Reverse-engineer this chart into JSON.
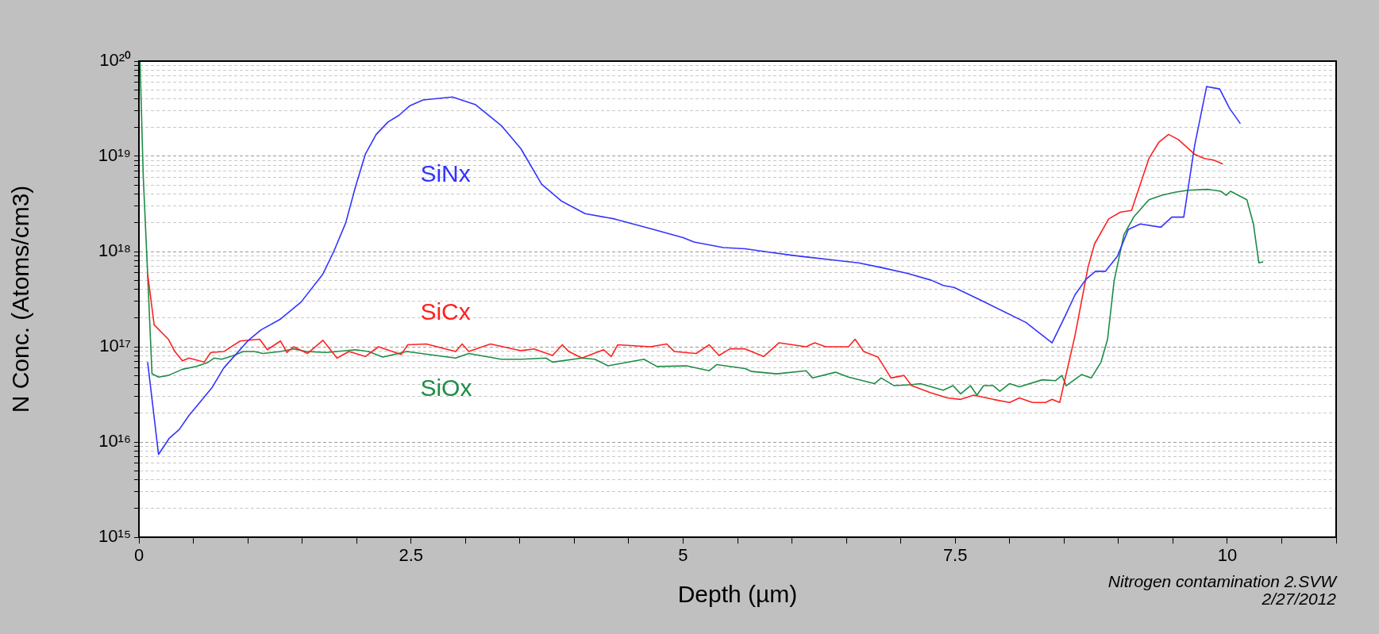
{
  "chart_data": {
    "type": "line",
    "xlabel": "Depth (µm)",
    "ylabel": "N Conc. (Atoms/cm3)",
    "log": "y",
    "grid": "y",
    "legend": false,
    "marker": "none",
    "line_style": "solid",
    "xlim": [
      0,
      11
    ],
    "xticks": [
      0,
      {
        "value": 0.5,
        "label": null
      },
      {
        "value": 1,
        "label": null
      },
      {
        "value": 1.5,
        "label": null
      },
      {
        "value": 2,
        "label": null
      },
      2.5,
      {
        "value": 3,
        "label": null
      },
      {
        "value": 3.5,
        "label": null
      },
      {
        "value": 4,
        "label": null
      },
      {
        "value": 4.5,
        "label": null
      },
      5,
      {
        "value": 5.5,
        "label": null
      },
      {
        "value": 6,
        "label": null
      },
      {
        "value": 6.5,
        "label": null
      },
      {
        "value": 7,
        "label": null
      },
      7.5,
      {
        "value": 8,
        "label": null
      },
      {
        "value": 8.5,
        "label": null
      },
      {
        "value": 9,
        "label": null
      },
      {
        "value": 9.5,
        "label": null
      },
      10,
      {
        "value": 10.5,
        "label": null
      },
      {
        "value": 11,
        "label": null
      }
    ],
    "ylim": [
      1000000000000000.0,
      1e+20
    ],
    "yticks": [
      {
        "value": 1000000000000000.0,
        "label": "10¹⁵"
      },
      {
        "value": 2000000000000000.0,
        "label": null
      },
      {
        "value": 3000000000000000.0,
        "label": null
      },
      {
        "value": 4000000000000000.0,
        "label": null
      },
      {
        "value": 5000000000000000.0,
        "label": null
      },
      {
        "value": 6000000000000000.0,
        "label": null
      },
      {
        "value": 7000000000000000.0,
        "label": null
      },
      {
        "value": 8000000000000000.0,
        "label": null
      },
      {
        "value": 9000000000000000.0,
        "label": null
      },
      {
        "value": 1e+16,
        "label": "10¹⁶"
      },
      {
        "value": 2e+16,
        "label": null
      },
      {
        "value": 3e+16,
        "label": null
      },
      {
        "value": 4e+16,
        "label": null
      },
      {
        "value": 5e+16,
        "label": null
      },
      {
        "value": 6e+16,
        "label": null
      },
      {
        "value": 7e+16,
        "label": null
      },
      {
        "value": 8e+16,
        "label": null
      },
      {
        "value": 9e+16,
        "label": null
      },
      {
        "value": 1e+17,
        "label": "10¹⁷"
      },
      {
        "value": 2e+17,
        "label": null
      },
      {
        "value": 3e+17,
        "label": null
      },
      {
        "value": 4e+17,
        "label": null
      },
      {
        "value": 5e+17,
        "label": null
      },
      {
        "value": 6e+17,
        "label": null
      },
      {
        "value": 7e+17,
        "label": null
      },
      {
        "value": 8e+17,
        "label": null
      },
      {
        "value": 9e+17,
        "label": null
      },
      {
        "value": 1e+18,
        "label": "10¹⁸"
      },
      {
        "value": 2e+18,
        "label": null
      },
      {
        "value": 3e+18,
        "label": null
      },
      {
        "value": 4e+18,
        "label": null
      },
      {
        "value": 5e+18,
        "label": null
      },
      {
        "value": 6e+18,
        "label": null
      },
      {
        "value": 7e+18,
        "label": null
      },
      {
        "value": 8e+18,
        "label": null
      },
      {
        "value": 9e+18,
        "label": null
      },
      {
        "value": 1e+19,
        "label": "10¹⁹"
      },
      {
        "value": 2e+19,
        "label": null
      },
      {
        "value": 3e+19,
        "label": null
      },
      {
        "value": 4e+19,
        "label": null
      },
      {
        "value": 5e+19,
        "label": null
      },
      {
        "value": 6e+19,
        "label": null
      },
      {
        "value": 7e+19,
        "label": null
      },
      {
        "value": 8e+19,
        "label": null
      },
      {
        "value": 9e+19,
        "label": null
      },
      {
        "value": 1e+20,
        "label": "10²⁰"
      }
    ],
    "annotations": [
      "Nitrogen contamination 2.SVW",
      "2/27/2012"
    ],
    "series": [
      {
        "name": "SiNx",
        "color": "#3333ff",
        "x": [
          0.08,
          0.18,
          0.28,
          0.37,
          0.46,
          0.67,
          0.78,
          1.0,
          1.12,
          1.3,
          1.49,
          1.69,
          1.79,
          1.9,
          1.99,
          2.08,
          2.18,
          2.29,
          2.39,
          2.49,
          2.61,
          2.88,
          3.09,
          3.33,
          3.51,
          3.7,
          3.88,
          4.1,
          4.37,
          4.73,
          5.0,
          5.1,
          5.37,
          5.57,
          5.8,
          6.01,
          6.4,
          6.61,
          6.82,
          7.06,
          7.28,
          7.39,
          7.49,
          7.73,
          8.15,
          8.39,
          8.51,
          8.6,
          8.7,
          8.79,
          8.88,
          8.99,
          9.09,
          9.2,
          9.39,
          9.49,
          9.6,
          9.7,
          9.81,
          9.93,
          10.02,
          10.12
        ],
        "values": [
          6.9e+16,
          7400000000000000.0,
          1.1e+16,
          1.35e+16,
          1.9e+16,
          3.7e+16,
          6e+16,
          1.15e+17,
          1.5e+17,
          1.95e+17,
          2.95e+17,
          5.8e+17,
          1e+18,
          2e+18,
          4.8e+18,
          1.05e+19,
          1.7e+19,
          2.3e+19,
          2.7e+19,
          3.4e+19,
          3.9e+19,
          4.2e+19,
          3.5e+19,
          2.1e+19,
          1.2e+19,
          5.1e+18,
          3.4e+18,
          2.5e+18,
          2.2e+18,
          1.7e+18,
          1.4e+18,
          1.26e+18,
          1.1e+18,
          1.07e+18,
          9.8e+17,
          9.1e+17,
          8.1e+17,
          7.6e+17,
          6.8e+17,
          5.9e+17,
          5e+17,
          4.4e+17,
          4.2e+17,
          3.1e+17,
          1.8e+17,
          1.1e+17,
          2.1e+17,
          3.5e+17,
          5.1e+17,
          6.2e+17,
          6.2e+17,
          8.9e+17,
          1.7e+18,
          1.95e+18,
          1.8e+18,
          2.3e+18,
          2.3e+18,
          1.3e+19,
          5.4e+19,
          5.1e+19,
          3.2e+19,
          2.2e+19
        ]
      },
      {
        "name": "SiCx",
        "color": "#ff2020",
        "x": [
          0.08,
          0.14,
          0.27,
          0.33,
          0.4,
          0.46,
          0.6,
          0.66,
          0.78,
          0.93,
          1.11,
          1.18,
          1.3,
          1.36,
          1.42,
          1.55,
          1.69,
          1.82,
          1.93,
          2.08,
          2.2,
          2.41,
          2.47,
          2.64,
          2.91,
          2.97,
          3.03,
          3.23,
          3.51,
          3.63,
          3.8,
          3.89,
          3.95,
          4.07,
          4.27,
          4.34,
          4.4,
          4.7,
          4.85,
          4.92,
          5.12,
          5.24,
          5.33,
          5.43,
          5.57,
          5.74,
          5.88,
          6.13,
          6.21,
          6.31,
          6.52,
          6.58,
          6.66,
          6.79,
          6.91,
          7.03,
          7.1,
          7.27,
          7.43,
          7.55,
          7.67,
          7.85,
          8.0,
          8.09,
          8.21,
          8.33,
          8.39,
          8.46,
          8.6,
          8.72,
          8.78,
          8.91,
          9.02,
          9.12,
          9.28,
          9.37,
          9.46,
          9.55,
          9.7,
          9.79,
          9.88,
          9.96
        ],
        "values": [
          5.8e+17,
          1.7e+17,
          1.2e+17,
          8.9e+16,
          7.1e+16,
          7.6e+16,
          6.9e+16,
          8.7e+16,
          8.9e+16,
          1.15e+17,
          1.2e+17,
          9.3e+16,
          1.15e+17,
          8.7e+16,
          1e+17,
          8.5e+16,
          1.17e+17,
          7.6e+16,
          8.9e+16,
          7.9e+16,
          1e+17,
          8.3e+16,
          1.05e+17,
          1.07e+17,
          8.9e+16,
          1.07e+17,
          8.9e+16,
          1.07e+17,
          9.1e+16,
          9.5e+16,
          8.1e+16,
          1.05e+17,
          8.9e+16,
          7.6e+16,
          9.3e+16,
          7.9e+16,
          1.05e+17,
          1e+17,
          1.07e+17,
          8.9e+16,
          8.5e+16,
          1.05e+17,
          8.1e+16,
          9.5e+16,
          9.5e+16,
          7.9e+16,
          1.1e+17,
          1e+17,
          1.1e+17,
          1e+17,
          1e+17,
          1.2e+17,
          8.9e+16,
          7.8e+16,
          4.7e+16,
          5e+16,
          3.9e+16,
          3.3e+16,
          2.9e+16,
          2.8e+16,
          3.1e+16,
          2.8e+16,
          2.6e+16,
          2.9e+16,
          2.6e+16,
          2.6e+16,
          2.8e+16,
          2.6e+16,
          1.3e+17,
          6.8e+17,
          1.2e+18,
          2.2e+18,
          2.6e+18,
          2.7e+18,
          9.5e+18,
          1.4e+19,
          1.7e+19,
          1.5e+19,
          1.05e+19,
          9.5e+18,
          9.1e+18,
          8.3e+18
        ]
      },
      {
        "name": "SiOx",
        "color": "#1e8c46",
        "x": [
          0.01,
          0.04,
          0.08,
          0.12,
          0.18,
          0.27,
          0.4,
          0.52,
          0.63,
          0.69,
          0.76,
          0.87,
          0.96,
          1.06,
          1.14,
          1.3,
          1.42,
          1.54,
          1.72,
          1.99,
          2.11,
          2.24,
          2.46,
          2.73,
          2.91,
          3.03,
          3.33,
          3.51,
          3.74,
          3.8,
          4.07,
          4.19,
          4.31,
          4.64,
          4.76,
          5.03,
          5.24,
          5.31,
          5.57,
          5.63,
          5.86,
          6.13,
          6.19,
          6.4,
          6.52,
          6.76,
          6.82,
          6.94,
          7.1,
          7.18,
          7.39,
          7.48,
          7.55,
          7.64,
          7.7,
          7.76,
          7.85,
          7.91,
          8.0,
          8.09,
          8.3,
          8.42,
          8.48,
          8.52,
          8.66,
          8.75,
          8.84,
          8.9,
          8.96,
          9.05,
          9.14,
          9.28,
          9.4,
          9.52,
          9.64,
          9.82,
          9.94,
          9.99,
          10.03,
          10.18,
          10.24,
          10.29,
          10.33
        ],
        "values": [
          1e+20,
          6e+18,
          5.8e+17,
          5.2e+16,
          4.8e+16,
          5e+16,
          5.8e+16,
          6.2e+16,
          6.8e+16,
          7.6e+16,
          7.4e+16,
          8.1e+16,
          8.9e+16,
          8.9e+16,
          8.5e+16,
          8.9e+16,
          9.5e+16,
          8.9e+16,
          8.7e+16,
          9.3e+16,
          8.9e+16,
          7.8e+16,
          8.9e+16,
          8.1e+16,
          7.6e+16,
          8.5e+16,
          7.4e+16,
          7.4e+16,
          7.6e+16,
          6.9e+16,
          7.6e+16,
          7.4e+16,
          6.3e+16,
          7.4e+16,
          6.2e+16,
          6.3e+16,
          5.6e+16,
          6.5e+16,
          5.9e+16,
          5.5e+16,
          5.2e+16,
          5.6e+16,
          4.7e+16,
          5.4e+16,
          4.8e+16,
          4.1e+16,
          4.7e+16,
          3.9e+16,
          4e+16,
          4.1e+16,
          3.5e+16,
          3.9e+16,
          3.2e+16,
          3.9e+16,
          3.1e+16,
          3.9e+16,
          3.9e+16,
          3.4e+16,
          4.1e+16,
          3.8e+16,
          4.5e+16,
          4.4e+16,
          5e+16,
          3.9e+16,
          5.1e+16,
          4.7e+16,
          6.9e+16,
          1.2e+17,
          4.9e+17,
          1.5e+18,
          2.3e+18,
          3.5e+18,
          3.9e+18,
          4.2e+18,
          4.4e+18,
          4.5e+18,
          4.3e+18,
          3.9e+18,
          4.3e+18,
          3.5e+18,
          1.95e+18,
          7.6e+17,
          7.8e+17
        ]
      }
    ]
  }
}
